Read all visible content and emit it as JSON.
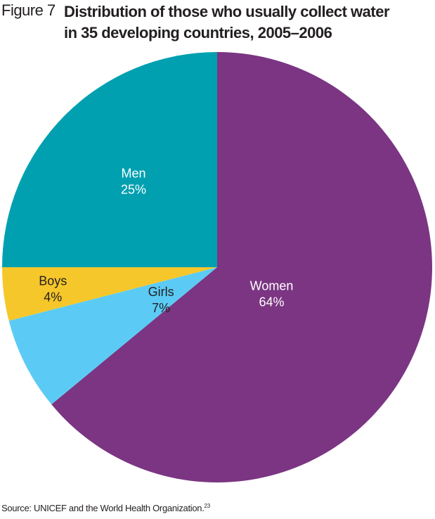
{
  "figure": {
    "number_label": "Figure 7",
    "title_line1": "Distribution of those who usually collect water",
    "title_line2": "in 35 developing countries, 2005–2006"
  },
  "source": {
    "text": "Source: UNICEF and the World Health Organization.",
    "footnote": "23"
  },
  "chart_data": {
    "type": "pie",
    "start_angle_deg": 0,
    "direction": "clockwise",
    "slices": [
      {
        "label": "Women",
        "value": 64,
        "value_label": "64%",
        "color": "#7b3582",
        "text_color": "#ffffff"
      },
      {
        "label": "Girls",
        "value": 7,
        "value_label": "7%",
        "color": "#5bcbf5",
        "text_color": "#231f20"
      },
      {
        "label": "Boys",
        "value": 4,
        "value_label": "4%",
        "color": "#f6c72a",
        "text_color": "#231f20"
      },
      {
        "label": "Men",
        "value": 25,
        "value_label": "25%",
        "color": "#00a0b0",
        "text_color": "#ffffff"
      }
    ]
  }
}
